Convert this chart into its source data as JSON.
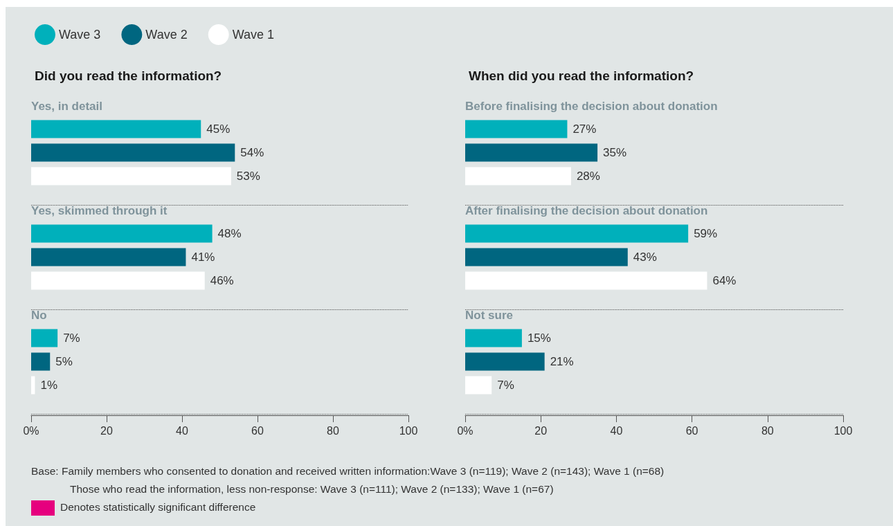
{
  "chart_data": [
    {
      "type": "bar",
      "orientation": "horizontal",
      "title": "Did you read the information?",
      "categories": [
        "Yes, in detail",
        "Yes, skimmed through it",
        "No"
      ],
      "series": [
        {
          "name": "Wave 3",
          "color": "#00b0bb",
          "values": [
            45,
            48,
            7
          ],
          "value_labels": [
            "45%",
            "48%",
            "7%"
          ]
        },
        {
          "name": "Wave 2",
          "color": "#006680",
          "values": [
            54,
            41,
            5
          ],
          "value_labels": [
            "54%",
            "41%",
            "5%"
          ]
        },
        {
          "name": "Wave 1",
          "color": "#ffffff",
          "values": [
            53,
            46,
            1
          ],
          "value_labels": [
            "53%",
            "46%",
            "1%"
          ]
        }
      ],
      "xlim": [
        0,
        100
      ],
      "xticks": [
        {
          "value": 0,
          "label": "0%"
        },
        20,
        40,
        60,
        80,
        100
      ],
      "legend": "top left",
      "annotations": [
        "Base: Family members who consented to donation and received written information:Wave 3 (n=119); Wave 2 (n=143); Wave 1 (n=68)",
        "Those who read the information, less non-response: Wave 3 (n=111); Wave 2 (n=133); Wave 1 (n=67)",
        "Denotes statistically significant difference"
      ]
    },
    {
      "type": "bar",
      "orientation": "horizontal",
      "title": "When did you read the information?",
      "categories": [
        "Before finalising the decision about donation",
        "After finalising the decision about donation",
        "Not sure"
      ],
      "series": [
        {
          "color": "#00b0bb",
          "values": [
            27,
            59,
            15
          ],
          "value_labels": [
            "27%",
            "59%",
            "15%"
          ]
        },
        {
          "color": "#006680",
          "values": [
            35,
            43,
            21
          ],
          "value_labels": [
            "35%",
            "43%",
            "21%"
          ]
        },
        {
          "color": "#ffffff",
          "values": [
            28,
            64,
            7
          ],
          "value_labels": [
            "28%",
            "64%",
            "7%"
          ]
        }
      ],
      "xlim": [
        0,
        100
      ],
      "xticks": [
        {
          "value": 0,
          "label": "0%"
        },
        20,
        40,
        60,
        80,
        100
      ]
    }
  ]
}
